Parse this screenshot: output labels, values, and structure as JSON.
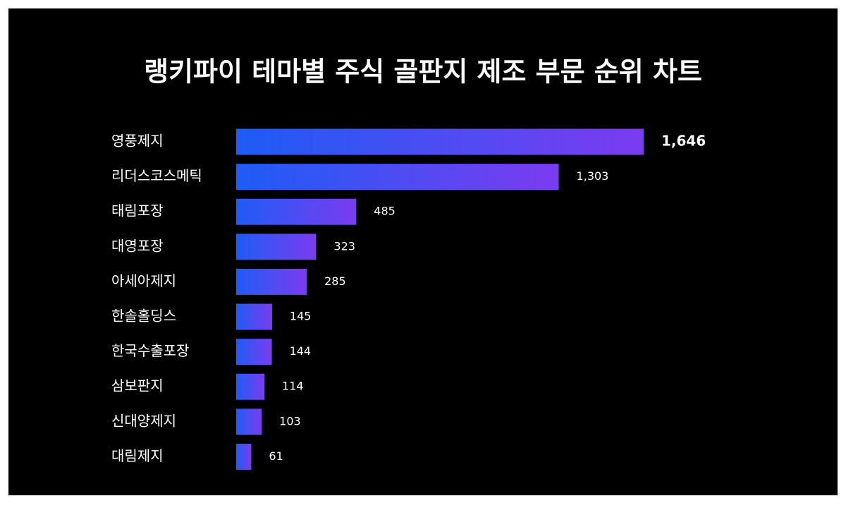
{
  "chart_data": {
    "type": "hbar",
    "title": "랭키파이 테마별 주식 골판지 제조 부문 순위 차트",
    "categories": [
      "영풍제지",
      "리더스코스메틱",
      "태림포장",
      "대영포장",
      "아세아제지",
      "한솔홀딩스",
      "한국수출포장",
      "삼보판지",
      "신대양제지",
      "대림제지"
    ],
    "values": [
      1646,
      1303,
      485,
      323,
      285,
      145,
      144,
      114,
      103,
      61
    ],
    "value_labels": [
      "1,646",
      "1,303",
      "485",
      "323",
      "285",
      "145",
      "144",
      "114",
      "103",
      "61"
    ],
    "gradient": [
      "#1e5cf5",
      "#7b3cf0"
    ]
  }
}
